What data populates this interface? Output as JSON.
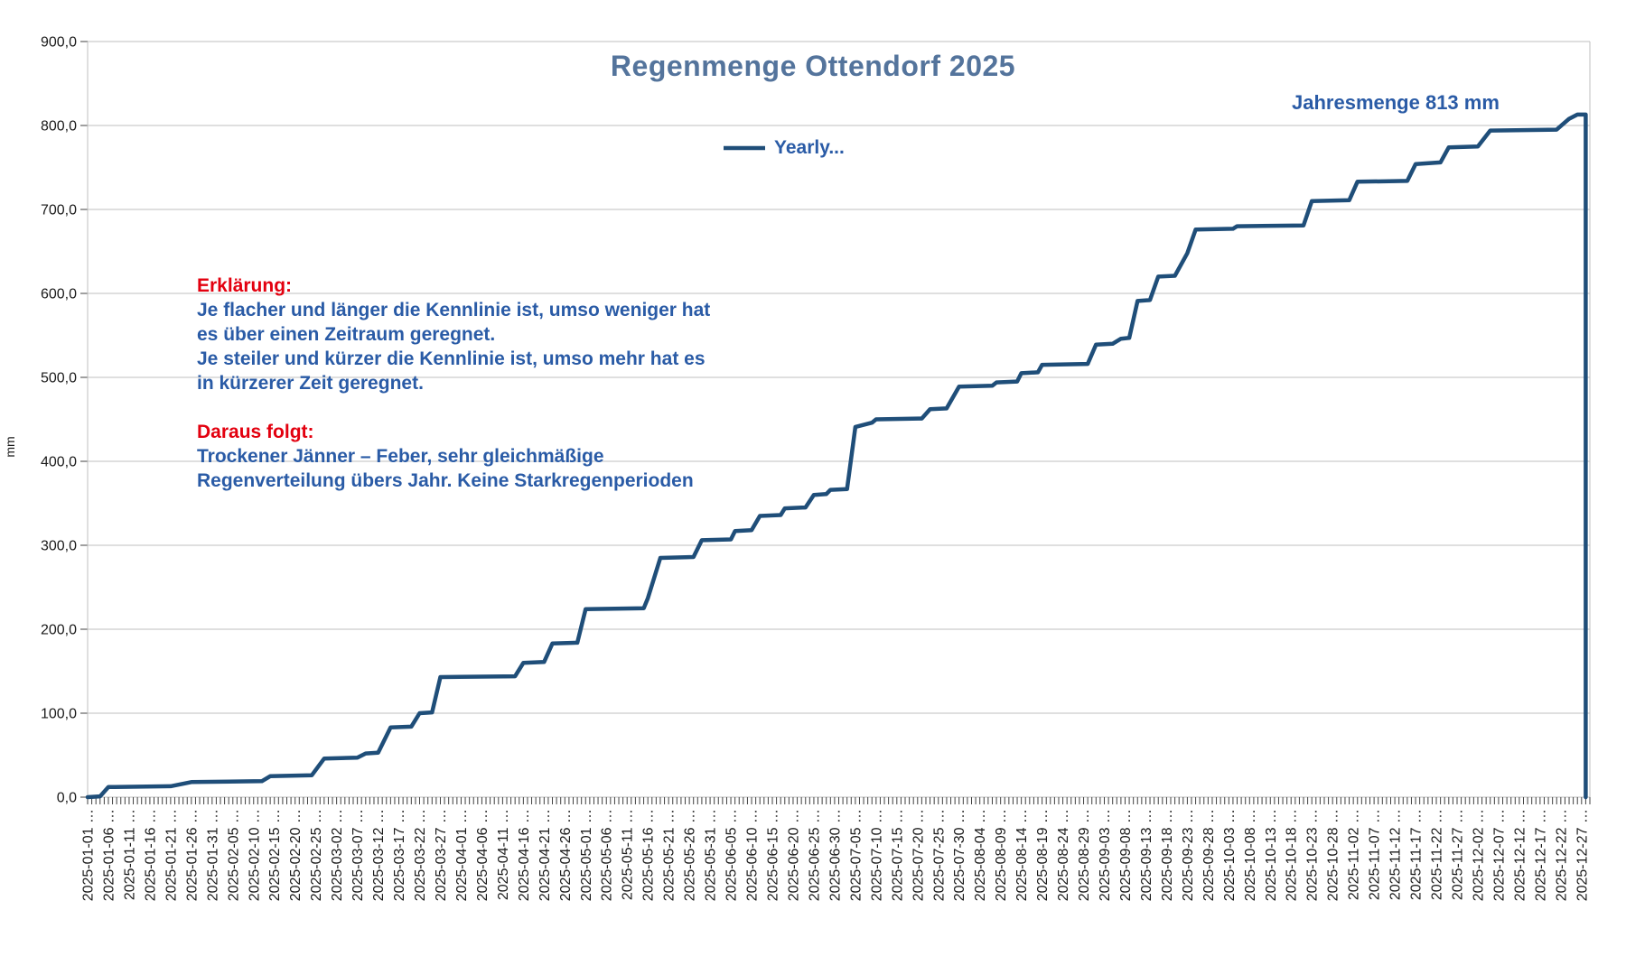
{
  "title": "Regenmenge Ottendorf 2025",
  "legend": {
    "label": "Yearly..."
  },
  "annotation_total": "Jahresmenge 813 mm",
  "note": {
    "heading1": "Erklärung:",
    "body1_lines": [
      "Je flacher und länger die Kennlinie ist, umso weniger hat",
      "es über einen Zeitraum geregnet.",
      "Je steiler und kürzer die Kennlinie ist, umso mehr hat es",
      "in kürzerer Zeit geregnet."
    ],
    "heading2": "Daraus folgt:",
    "body2_lines": [
      "Trockener Jänner – Feber, sehr gleichmäßige",
      "Regenverteilung übers Jahr. Keine Starkregenperioden"
    ]
  },
  "y_axis": {
    "unit": "mm",
    "min": 0,
    "max": 900,
    "step": 100,
    "tick_labels": [
      "0,0",
      "100,0",
      "200,0",
      "300,0",
      "400,0",
      "500,0",
      "600,0",
      "700,0",
      "800,0",
      "900,0"
    ]
  },
  "x_axis": {
    "label_step_days": 5,
    "tick_labels": [
      "2025-01-01 …",
      "2025-01-06 …",
      "2025-01-11 …",
      "2025-01-16 …",
      "2025-01-21 …",
      "2025-01-26 …",
      "2025-01-31 …",
      "2025-02-05 …",
      "2025-02-10 …",
      "2025-02-15 …",
      "2025-02-20 …",
      "2025-02-25 …",
      "2025-03-02 …",
      "2025-03-07 …",
      "2025-03-12 …",
      "2025-03-17 …",
      "2025-03-22 …",
      "2025-03-27 …",
      "2025-04-01 …",
      "2025-04-06 …",
      "2025-04-11 …",
      "2025-04-16 …",
      "2025-04-21 …",
      "2025-04-26 …",
      "2025-05-01 …",
      "2025-05-06 …",
      "2025-05-11 …",
      "2025-05-16 …",
      "2025-05-21 …",
      "2025-05-26 …",
      "2025-05-31 …",
      "2025-06-05 …",
      "2025-06-10 …",
      "2025-06-15 …",
      "2025-06-20 …",
      "2025-06-25 …",
      "2025-06-30 …",
      "2025-07-05 …",
      "2025-07-10 …",
      "2025-07-15 …",
      "2025-07-20 …",
      "2025-07-25 …",
      "2025-07-30 …",
      "2025-08-04 …",
      "2025-08-09 …",
      "2025-08-14 …",
      "2025-08-19 …",
      "2025-08-24 …",
      "2025-08-29 …",
      "2025-09-03 …",
      "2025-09-08 …",
      "2025-09-13 …",
      "2025-09-18 …",
      "2025-09-23 …",
      "2025-09-28 …",
      "2025-10-03 …",
      "2025-10-08 …",
      "2025-10-13 …",
      "2025-10-18 …",
      "2025-10-23 …",
      "2025-10-28 …",
      "2025-11-02 …",
      "2025-11-07 …",
      "2025-11-12 …",
      "2025-11-17 …",
      "2025-11-22 …",
      "2025-11-27 …",
      "2025-12-02 …",
      "2025-12-07 …",
      "2025-12-12 …",
      "2025-12-17 …",
      "2025-12-22 …",
      "2025-12-27 …"
    ]
  },
  "chart_data": {
    "type": "line",
    "title": "Regenmenge Ottendorf 2025",
    "series_name": "Yearly...",
    "ylabel": "mm",
    "ylim": [
      0,
      900
    ],
    "grid": "horizontal",
    "annual_total_mm": 813,
    "x_start": "2025-01-01",
    "x_span_days": 362,
    "points": [
      [
        "2025-01-01",
        0
      ],
      [
        "2025-01-04",
        1
      ],
      [
        "2025-01-06",
        12
      ],
      [
        "2025-01-21",
        13
      ],
      [
        "2025-01-26",
        18
      ],
      [
        "2025-02-12",
        19
      ],
      [
        "2025-02-14",
        25
      ],
      [
        "2025-02-24",
        26
      ],
      [
        "2025-02-27",
        46
      ],
      [
        "2025-03-07",
        47
      ],
      [
        "2025-03-09",
        52
      ],
      [
        "2025-03-12",
        53
      ],
      [
        "2025-03-15",
        83
      ],
      [
        "2025-03-20",
        84
      ],
      [
        "2025-03-22",
        100
      ],
      [
        "2025-03-25",
        101
      ],
      [
        "2025-03-27",
        143
      ],
      [
        "2025-04-14",
        144
      ],
      [
        "2025-04-16",
        160
      ],
      [
        "2025-04-21",
        161
      ],
      [
        "2025-04-23",
        183
      ],
      [
        "2025-04-29",
        184
      ],
      [
        "2025-05-01",
        224
      ],
      [
        "2025-05-15",
        225
      ],
      [
        "2025-05-16",
        237
      ],
      [
        "2025-05-19",
        285
      ],
      [
        "2025-05-27",
        286
      ],
      [
        "2025-05-29",
        306
      ],
      [
        "2025-06-05",
        307
      ],
      [
        "2025-06-06",
        317
      ],
      [
        "2025-06-10",
        318
      ],
      [
        "2025-06-12",
        335
      ],
      [
        "2025-06-17",
        336
      ],
      [
        "2025-06-18",
        344
      ],
      [
        "2025-06-23",
        345
      ],
      [
        "2025-06-25",
        360
      ],
      [
        "2025-06-28",
        361
      ],
      [
        "2025-06-29",
        366
      ],
      [
        "2025-07-03",
        367
      ],
      [
        "2025-07-05",
        441
      ],
      [
        "2025-07-09",
        446
      ],
      [
        "2025-07-10",
        450
      ],
      [
        "2025-07-21",
        451
      ],
      [
        "2025-07-23",
        462
      ],
      [
        "2025-07-27",
        463
      ],
      [
        "2025-07-30",
        489
      ],
      [
        "2025-08-07",
        490
      ],
      [
        "2025-08-08",
        494
      ],
      [
        "2025-08-13",
        495
      ],
      [
        "2025-08-14",
        505
      ],
      [
        "2025-08-18",
        506
      ],
      [
        "2025-08-19",
        515
      ],
      [
        "2025-08-30",
        516
      ],
      [
        "2025-09-01",
        539
      ],
      [
        "2025-09-05",
        540
      ],
      [
        "2025-09-07",
        546
      ],
      [
        "2025-09-09",
        547
      ],
      [
        "2025-09-11",
        591
      ],
      [
        "2025-09-14",
        592
      ],
      [
        "2025-09-16",
        620
      ],
      [
        "2025-09-20",
        621
      ],
      [
        "2025-09-23",
        648
      ],
      [
        "2025-09-25",
        676
      ],
      [
        "2025-10-04",
        677
      ],
      [
        "2025-10-05",
        680
      ],
      [
        "2025-10-21",
        681
      ],
      [
        "2025-10-23",
        710
      ],
      [
        "2025-11-01",
        711
      ],
      [
        "2025-11-03",
        733
      ],
      [
        "2025-11-15",
        734
      ],
      [
        "2025-11-17",
        754
      ],
      [
        "2025-11-23",
        756
      ],
      [
        "2025-11-25",
        774
      ],
      [
        "2025-12-02",
        775
      ],
      [
        "2025-12-05",
        794
      ],
      [
        "2025-12-21",
        795
      ],
      [
        "2025-12-24",
        808
      ],
      [
        "2025-12-26",
        813
      ],
      [
        "2025-12-28",
        813
      ],
      [
        "2025-12-28",
        0
      ]
    ]
  },
  "colors": {
    "title_blue": "#54749c",
    "text_blue": "#2a5ba6",
    "text_red": "#e3000f",
    "line_navy": "#1f4e79",
    "grid_gray": "#bfbfbf",
    "axis_text": "#1a1a1a",
    "tick_dark": "#404040"
  }
}
